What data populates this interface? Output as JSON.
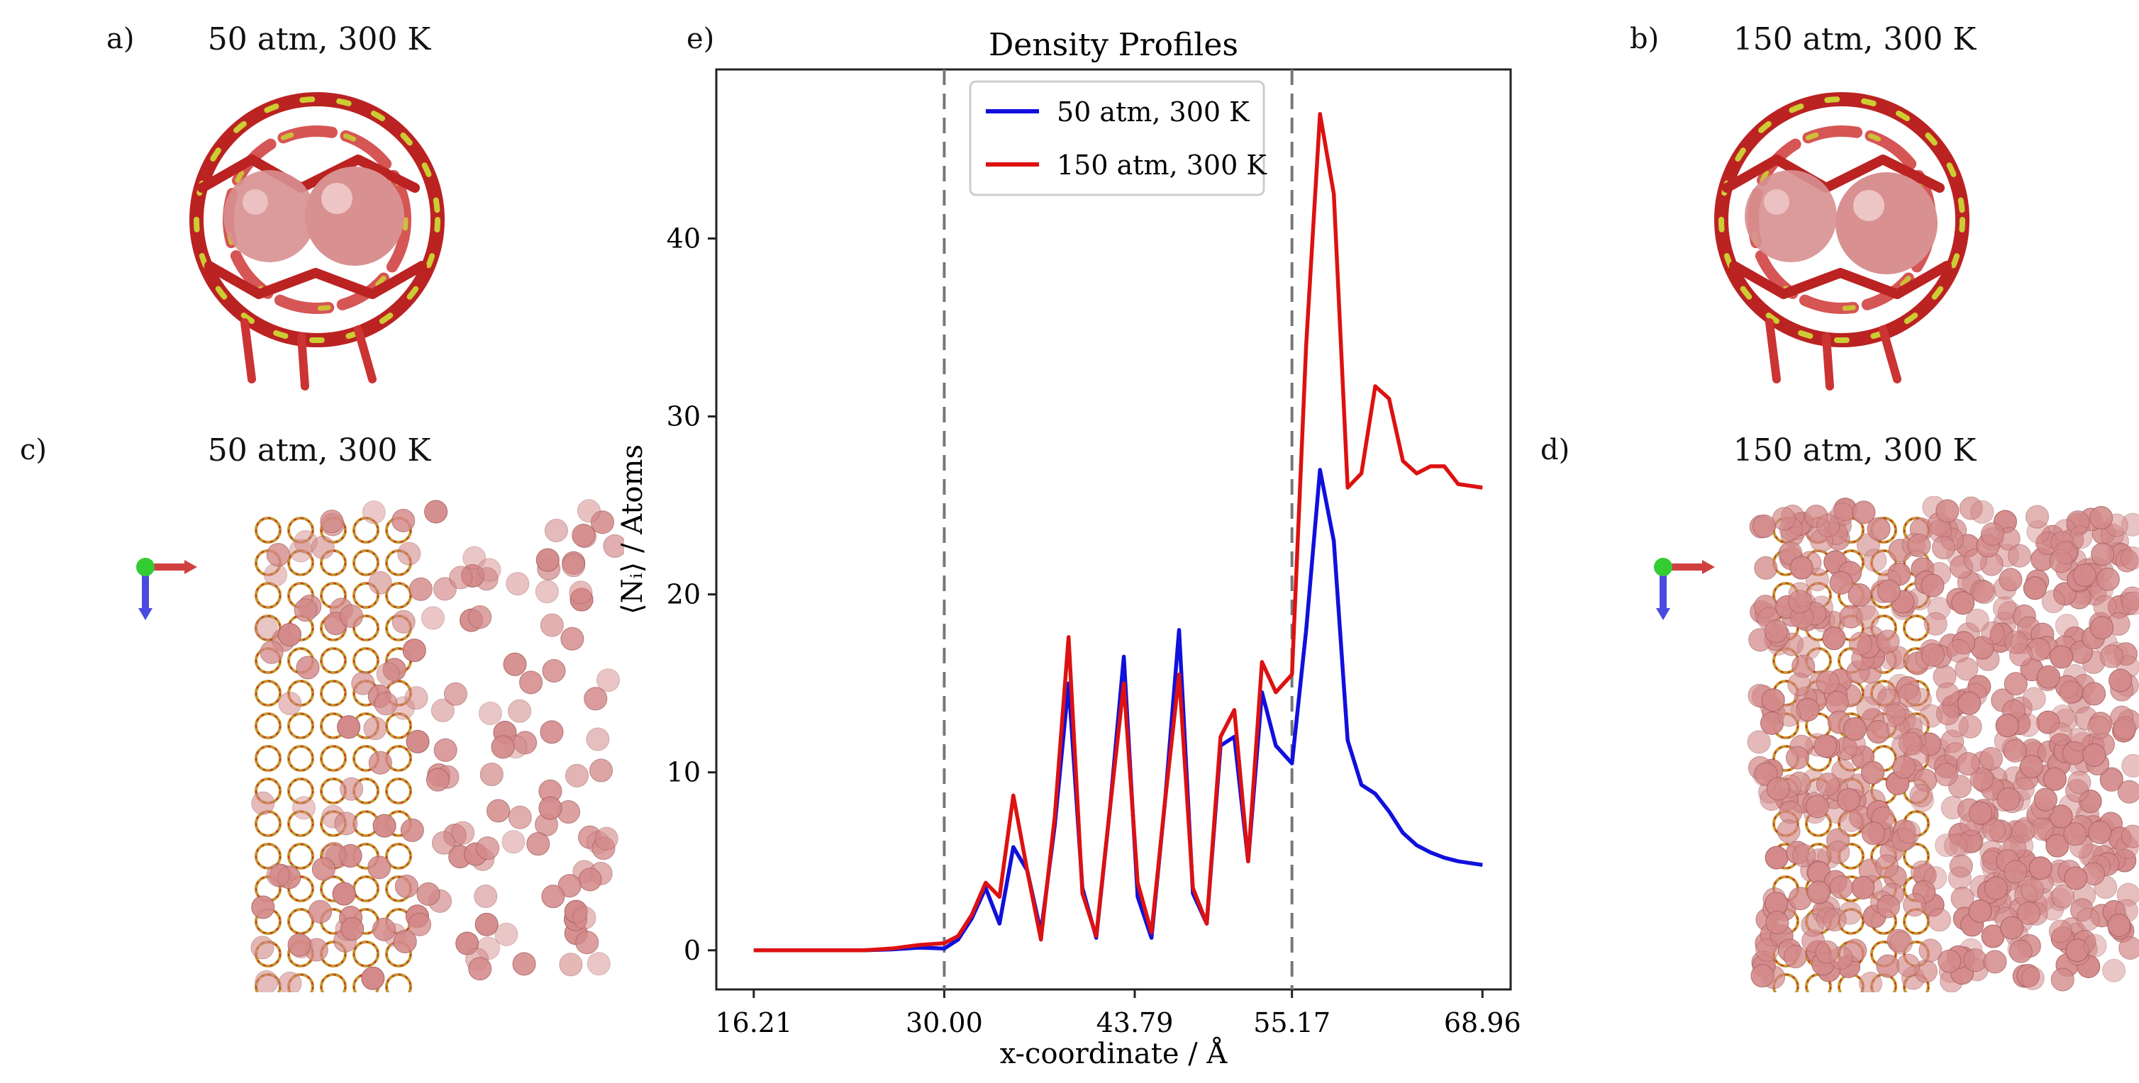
{
  "panels": {
    "a": {
      "label": "a)",
      "title": "50 atm, 300 K"
    },
    "b": {
      "label": "b)",
      "title": "150 atm, 300 K"
    },
    "c": {
      "label": "c)",
      "title": "50 atm, 300 K"
    },
    "d": {
      "label": "d)",
      "title": "150 atm, 300 K"
    },
    "e": {
      "label": "e)"
    }
  },
  "colors": {
    "series_50": "#1010dd",
    "series_150": "#dd1111",
    "framework_red": "#cc2222",
    "framework_yellow": "#cccc33",
    "atom_pink": "#d48a8a",
    "dashed": "#777777"
  },
  "chart_data": {
    "type": "line",
    "title": "Density Profiles",
    "xlabel": "x-coordinate / Å",
    "ylabel": "⟨Nᵢ⟩ / Atoms",
    "xlim": [
      13.5,
      71.0
    ],
    "ylim": [
      -2.2,
      49.5
    ],
    "xticks": [
      16.21,
      30.0,
      43.79,
      55.17,
      68.96
    ],
    "xtick_labels": [
      "16.21",
      "30.00",
      "43.79",
      "55.17",
      "68.96"
    ],
    "yticks": [
      0,
      10,
      20,
      30,
      40
    ],
    "ytick_labels": [
      "0",
      "10",
      "20",
      "30",
      "40"
    ],
    "vlines": [
      30.0,
      55.17
    ],
    "legend_position": "top-left inside axes",
    "series": [
      {
        "name": "50 atm, 300 K",
        "x": [
          16.21,
          18.2,
          20.2,
          22.2,
          24.2,
          26.2,
          28.2,
          30.0,
          31.0,
          32.0,
          33.0,
          34.0,
          35.0,
          36.0,
          37.0,
          38.0,
          39.0,
          40.0,
          41.0,
          42.0,
          43.0,
          44.0,
          45.0,
          46.0,
          47.0,
          48.0,
          49.0,
          50.0,
          51.0,
          52.0,
          53.0,
          54.0,
          55.17,
          56.2,
          57.2,
          58.2,
          59.2,
          60.2,
          61.2,
          62.2,
          63.2,
          64.2,
          65.2,
          66.2,
          67.2,
          68.96
        ],
        "values": [
          0,
          0,
          0,
          0,
          0,
          0.05,
          0.15,
          0.1,
          0.6,
          1.8,
          3.5,
          1.5,
          5.8,
          4.5,
          1.0,
          7.0,
          15.0,
          3.5,
          0.7,
          8.0,
          16.5,
          3.0,
          0.7,
          8.5,
          18.0,
          3.2,
          1.5,
          11.5,
          12.0,
          5.0,
          14.5,
          11.5,
          10.5,
          18.0,
          27.0,
          23.0,
          11.8,
          9.3,
          8.8,
          7.8,
          6.6,
          5.9,
          5.5,
          5.2,
          5.0,
          4.8
        ]
      },
      {
        "name": "150 atm, 300 K",
        "x": [
          16.21,
          18.2,
          20.2,
          22.2,
          24.2,
          26.2,
          28.2,
          30.0,
          31.0,
          32.0,
          33.0,
          34.0,
          35.0,
          36.0,
          37.0,
          38.0,
          39.0,
          40.0,
          41.0,
          42.0,
          43.0,
          44.0,
          45.0,
          46.0,
          47.0,
          48.0,
          49.0,
          50.0,
          51.0,
          52.0,
          53.0,
          54.0,
          55.17,
          56.2,
          57.2,
          58.2,
          59.2,
          60.2,
          61.2,
          62.2,
          63.2,
          64.2,
          65.2,
          66.2,
          67.2,
          68.96
        ],
        "values": [
          0,
          0,
          0,
          0,
          0,
          0.1,
          0.3,
          0.4,
          0.8,
          2.0,
          3.8,
          3.0,
          8.7,
          4.5,
          0.6,
          7.5,
          17.6,
          3.2,
          0.8,
          8.0,
          15.0,
          3.8,
          1.0,
          8.5,
          15.5,
          3.5,
          1.5,
          12.0,
          13.5,
          5.0,
          16.2,
          14.5,
          15.5,
          34.0,
          47.0,
          42.5,
          26.0,
          26.8,
          31.7,
          31.0,
          27.5,
          26.8,
          27.2,
          27.2,
          26.2,
          26.0
        ]
      }
    ]
  }
}
